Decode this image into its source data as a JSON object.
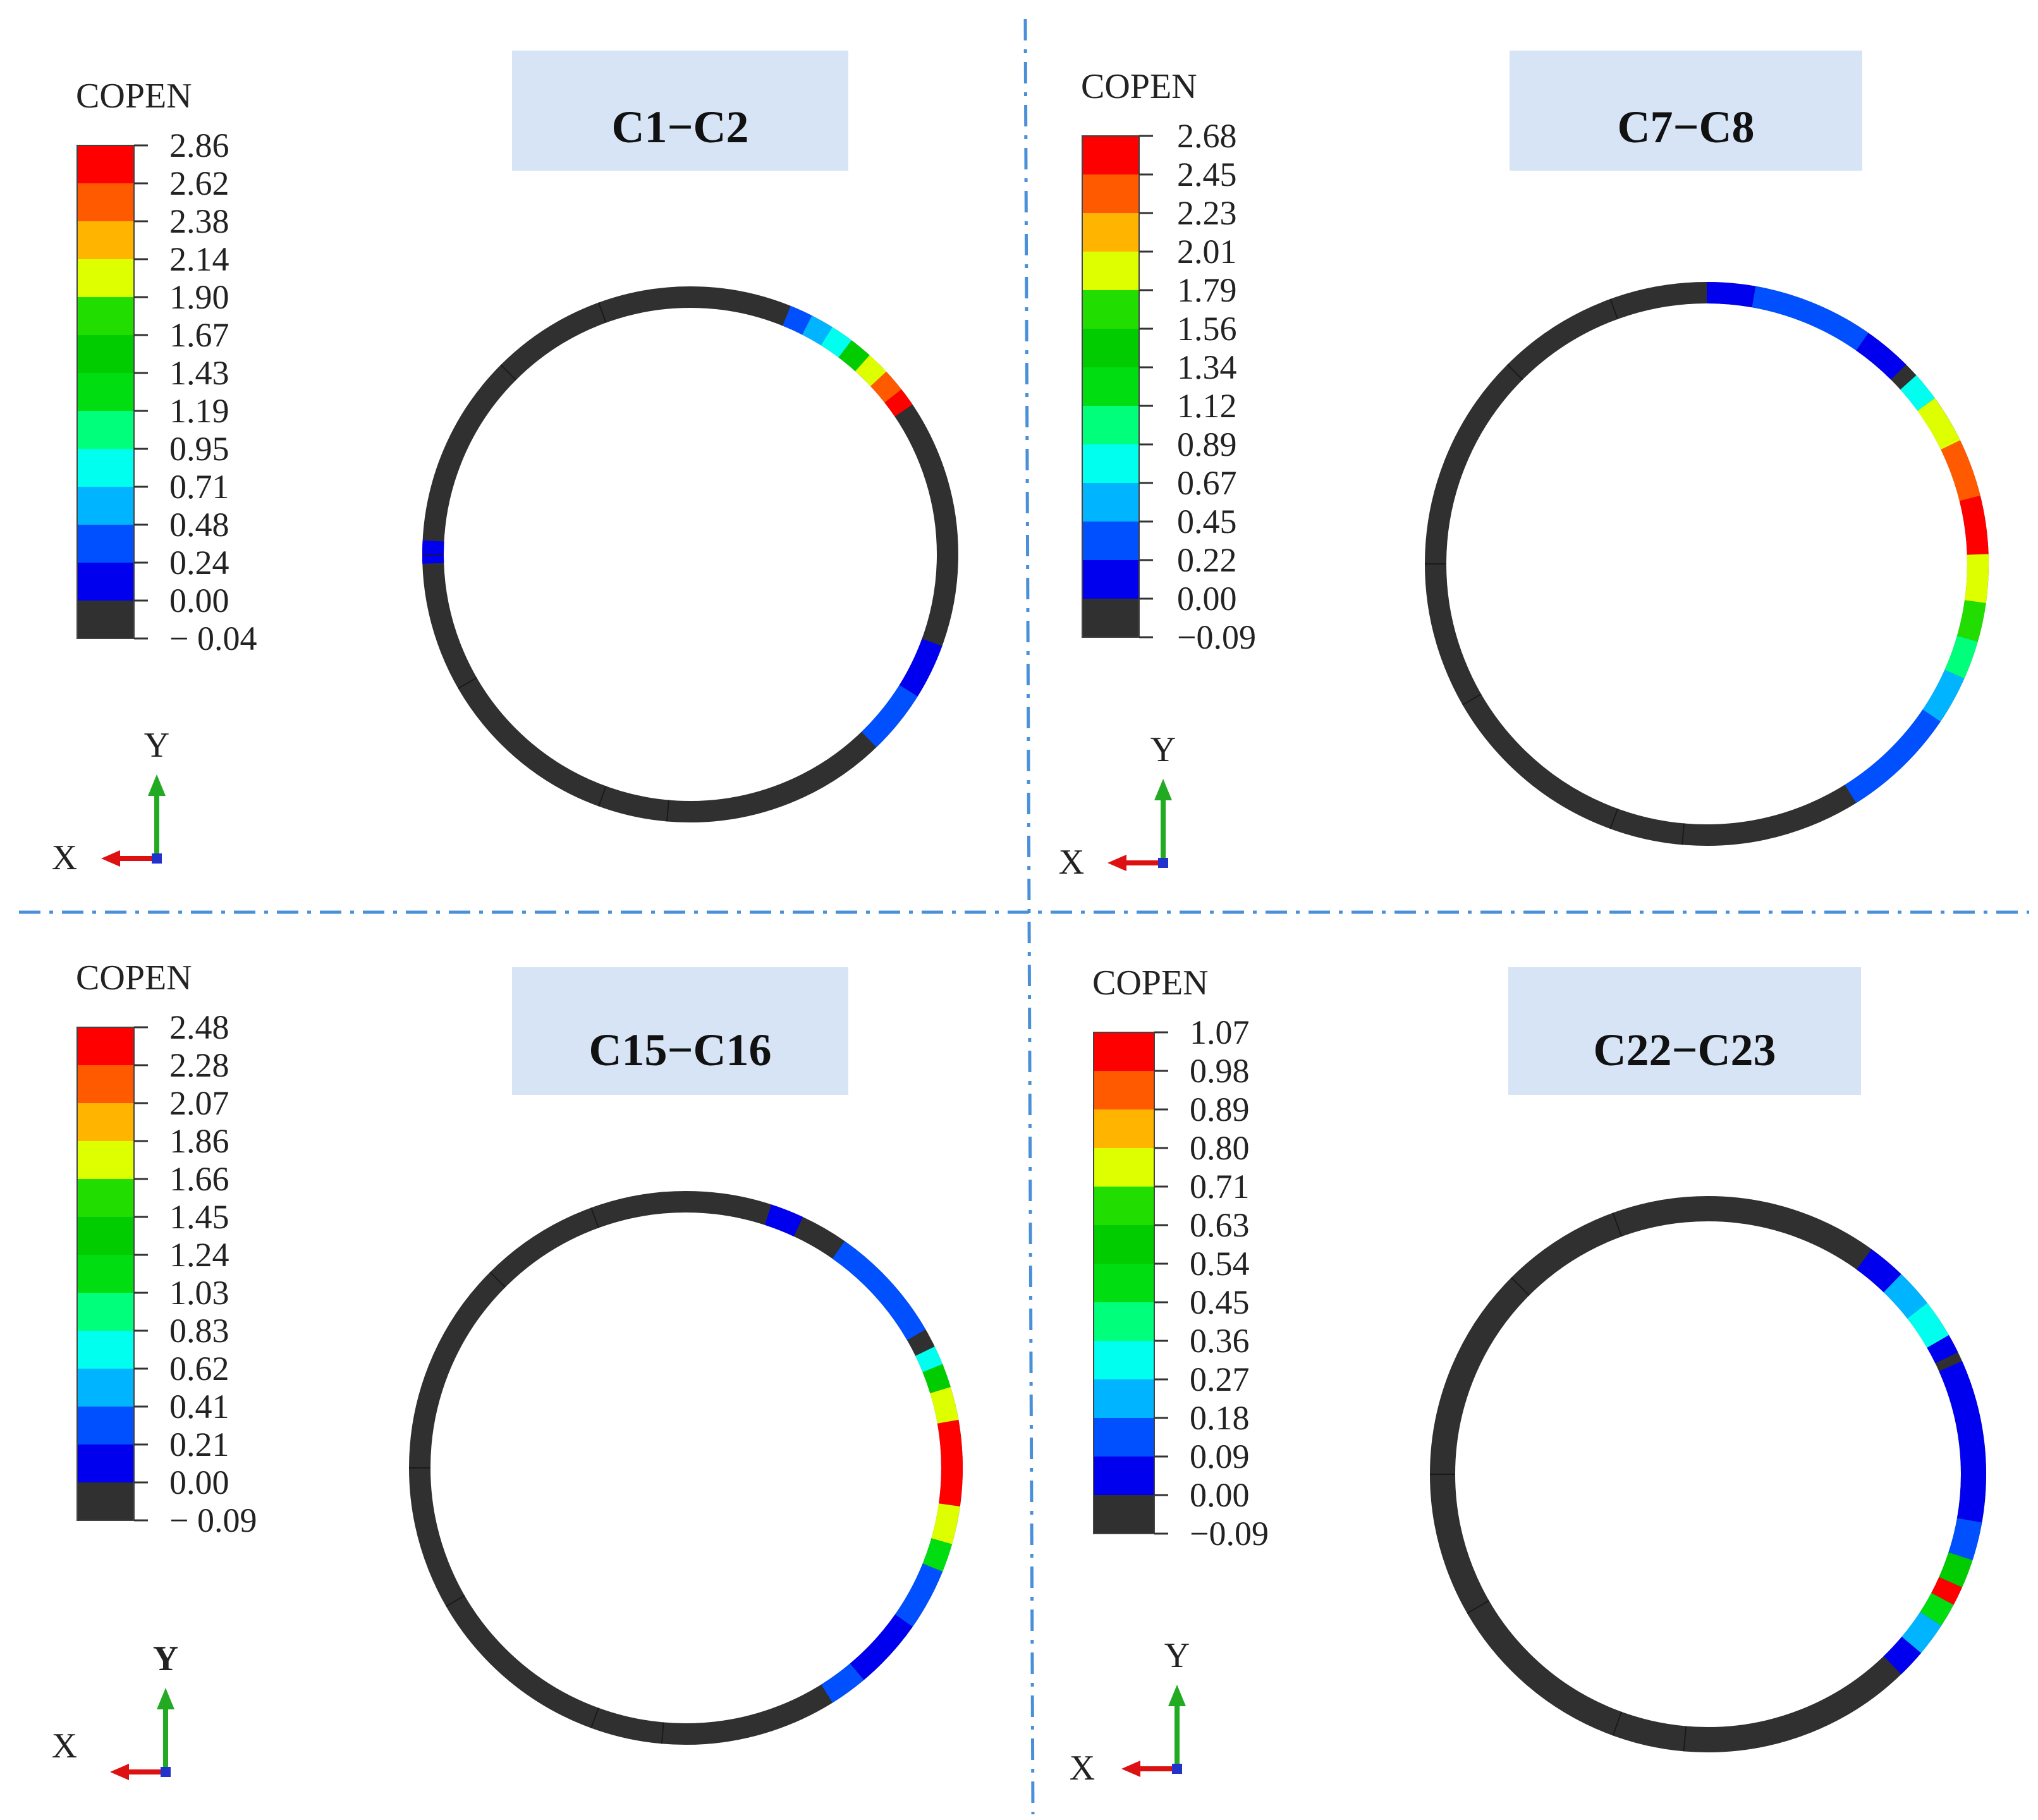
{
  "legend_colors": [
    "#ff0000",
    "#ff5a00",
    "#ffb400",
    "#ddff00",
    "#22dd00",
    "#00cc00",
    "#00dd11",
    "#00ff7a",
    "#00ffee",
    "#00b4ff",
    "#0050ff",
    "#0000ee",
    "#303030"
  ],
  "ring_color": "#303030",
  "divider_color": "#4a90d9",
  "title_box_color": "#d6e4f5",
  "panels": [
    {
      "title": "C1−C2",
      "legend": {
        "title": "COPEN",
        "ticks": [
          "2.86",
          "2.62",
          "2.38",
          "2.14",
          "1.90",
          "1.67",
          "1.43",
          "1.19",
          "0.95",
          "0.71",
          "0.48",
          "0.24",
          "0.00",
          "− 0.04"
        ]
      },
      "axes": {
        "y": "Y",
        "x": "X"
      }
    },
    {
      "title": "C7−C8",
      "legend": {
        "title": "COPEN",
        "ticks": [
          "2.68",
          "2.45",
          "2.23",
          "2.01",
          "1.79",
          "1.56",
          "1.34",
          "1.12",
          "0.89",
          "0.67",
          "0.45",
          "0.22",
          "0.00",
          "−0.09"
        ]
      },
      "axes": {
        "y": "Y",
        "x": "X"
      }
    },
    {
      "title": "C15−C16",
      "legend": {
        "title": "COPEN",
        "ticks": [
          "2.48",
          "2.28",
          "2.07",
          "1.86",
          "1.66",
          "1.45",
          "1.24",
          "1.03",
          "0.83",
          "0.62",
          "0.41",
          "0.21",
          "0.00",
          "− 0.09"
        ]
      },
      "axes": {
        "y": "Y",
        "x": "X"
      }
    },
    {
      "title": "C22−C23",
      "legend": {
        "title": "COPEN",
        "ticks": [
          "1.07",
          "0.98",
          "0.89",
          "0.80",
          "0.71",
          "0.63",
          "0.54",
          "0.45",
          "0.36",
          "0.27",
          "0.18",
          "0.09",
          "0.00",
          "−0.09"
        ]
      },
      "axes": {
        "y": "Y",
        "x": "X"
      }
    }
  ]
}
